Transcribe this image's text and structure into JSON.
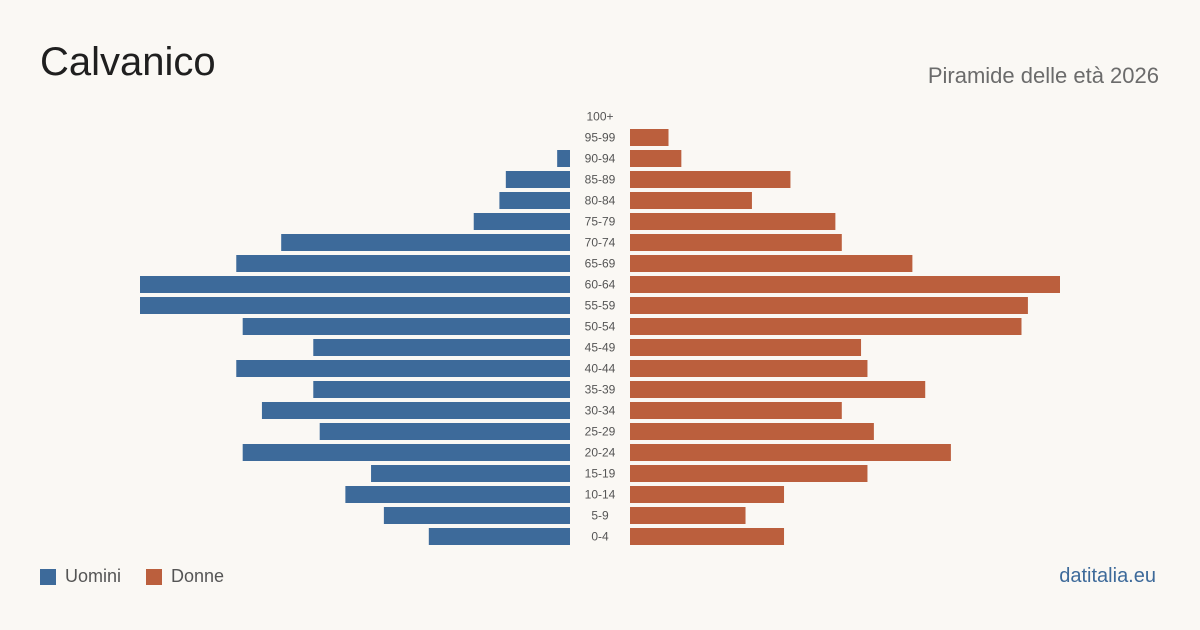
{
  "title": "Calvanico",
  "subtitle": "Piramide delle età 2026",
  "source": "datitalia.eu",
  "legend": {
    "male_label": "Uomini",
    "female_label": "Donne"
  },
  "colors": {
    "male": "#3d6a9a",
    "female": "#bb5f3d",
    "background": "#faf8f4"
  },
  "chart_data": {
    "type": "bar",
    "orientation": "horizontal-pyramid",
    "categories": [
      "100+",
      "95-99",
      "90-94",
      "85-89",
      "80-84",
      "75-79",
      "70-74",
      "65-69",
      "60-64",
      "55-59",
      "50-54",
      "45-49",
      "40-44",
      "35-39",
      "30-34",
      "25-29",
      "20-24",
      "15-19",
      "10-14",
      "5-9",
      "0-4"
    ],
    "series": [
      {
        "name": "Uomini",
        "values": [
          0,
          0,
          2,
          10,
          11,
          15,
          45,
          52,
          67,
          67,
          51,
          40,
          52,
          40,
          48,
          39,
          51,
          31,
          35,
          29,
          22
        ]
      },
      {
        "name": "Donne",
        "values": [
          0,
          6,
          8,
          25,
          19,
          32,
          33,
          44,
          67,
          62,
          61,
          36,
          37,
          46,
          33,
          38,
          50,
          37,
          24,
          18,
          24
        ]
      }
    ],
    "title": "Calvanico",
    "subtitle": "Piramide delle età 2026",
    "legend_position": "bottom-left",
    "grid": false
  }
}
